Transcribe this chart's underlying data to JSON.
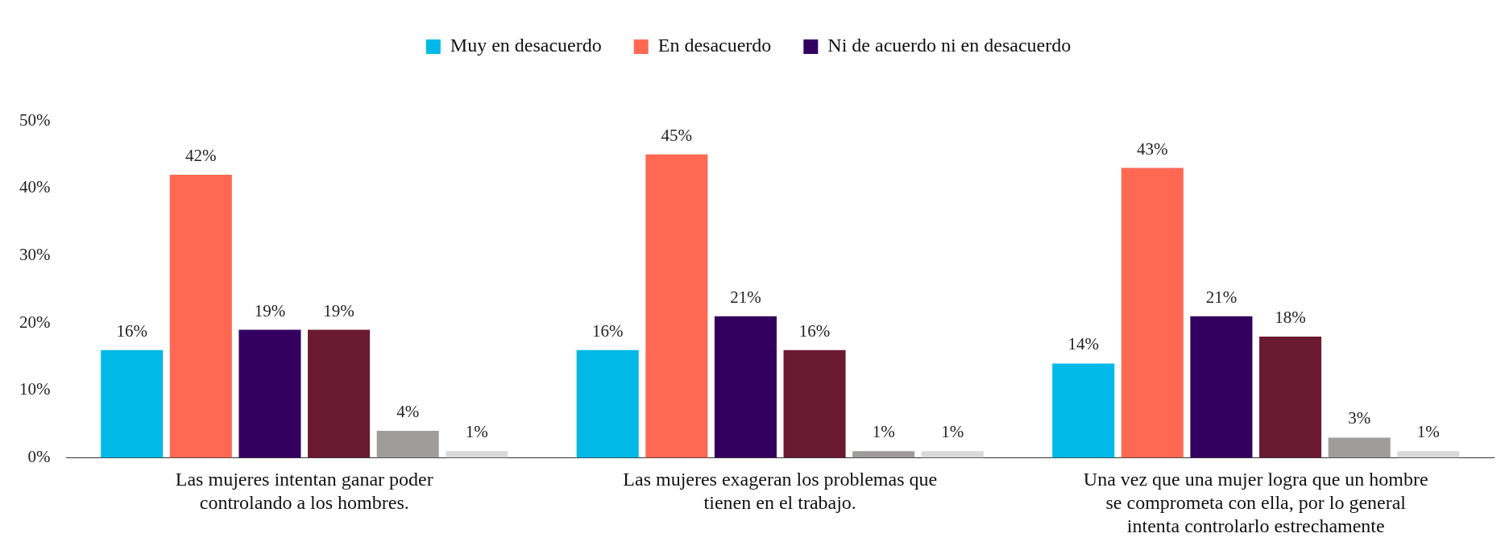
{
  "chart_data": {
    "type": "bar",
    "categories": [
      "Las mujeres intentan ganar poder controlando a los hombres.",
      "Las mujeres exageran los problemas que tienen en el trabajo.",
      "Una vez que una mujer logra que un hombre se comprometa con ella, por lo general intenta controlarlo estrechamente"
    ],
    "series": [
      {
        "name": "Muy en desacuerdo",
        "color": "#00b9e6",
        "values": [
          16,
          16,
          14
        ],
        "value_labels": [
          "16%",
          "16%",
          "14%"
        ]
      },
      {
        "name": "En desacuerdo",
        "color": "#ff6953",
        "values": [
          42,
          45,
          43
        ],
        "value_labels": [
          "42%",
          "45%",
          "43%"
        ]
      },
      {
        "name": "Ni de acuerdo ni en desacuerdo",
        "color": "#330060",
        "values": [
          19,
          21,
          21
        ],
        "value_labels": [
          "19%",
          "21%",
          "21%"
        ]
      },
      {
        "color": "#6b1a33",
        "values": [
          19,
          16,
          18
        ],
        "value_labels": [
          "19%",
          "16%",
          "18%"
        ]
      },
      {
        "color": "#a09c9c",
        "values": [
          4,
          1,
          3
        ],
        "value_labels": [
          "4%",
          "1%",
          "3%"
        ]
      },
      {
        "color": "#d9d9d9",
        "values": [
          1,
          1,
          1
        ],
        "value_labels": [
          "1%",
          "1%",
          "1%"
        ]
      }
    ],
    "ylim": [
      0,
      50
    ],
    "yticks": [
      {
        "value": 0,
        "label": "0%"
      },
      {
        "value": 10,
        "label": "10%"
      },
      {
        "value": 20,
        "label": "20%"
      },
      {
        "value": 30,
        "label": "30%"
      },
      {
        "value": 40,
        "label": "40%"
      },
      {
        "value": 50,
        "label": "50%"
      }
    ],
    "grid": false,
    "legend": "top"
  }
}
